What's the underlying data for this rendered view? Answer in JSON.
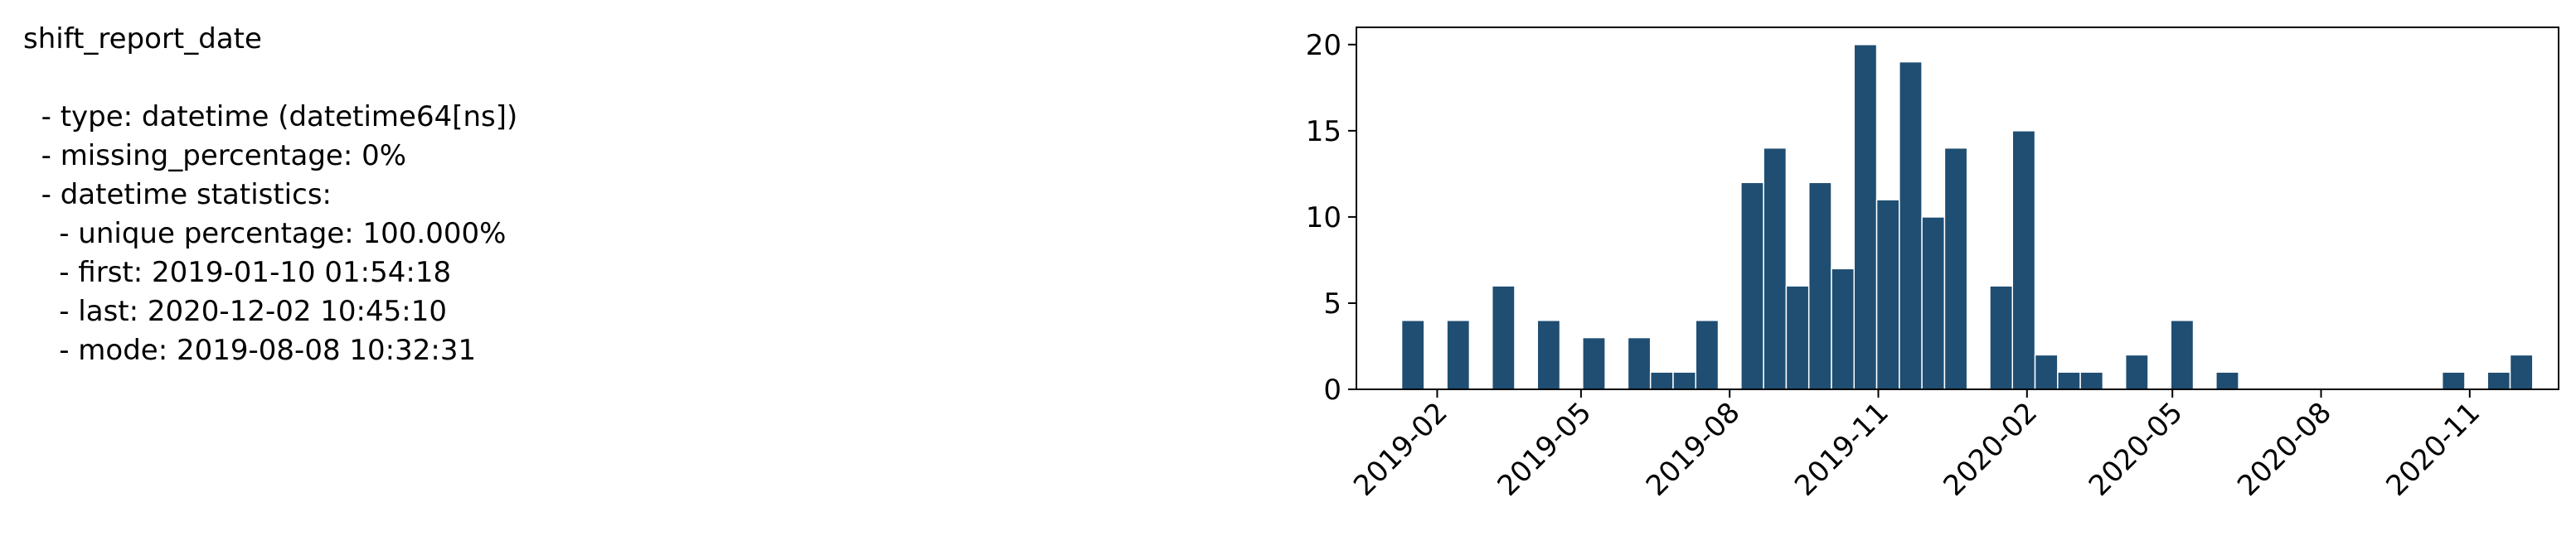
{
  "panel": {
    "column_name": "shift_report_date",
    "lines": [
      "  - type: datetime (datetime64[ns])",
      "  - missing_percentage: 0%",
      "  - datetime statistics:",
      "    - unique percentage: 100.000%",
      "    - first: 2019-01-10 01:54:18",
      "    - last: 2020-12-02 10:45:10",
      "    - mode: 2019-08-08 10:32:31"
    ]
  },
  "colors": {
    "bar": "#1f4e72",
    "bar_edge": "#ffffff",
    "axis": "#000000"
  },
  "chart_data": {
    "type": "bar",
    "grid": false,
    "legend": "none",
    "x_type": "date",
    "xlim": [
      "2018-12-13",
      "2020-12-26"
    ],
    "ylim": [
      0,
      21
    ],
    "yticks": [
      0,
      5,
      10,
      15,
      20
    ],
    "xticks": [
      {
        "date": "2019-02-01",
        "label": "2019-02"
      },
      {
        "date": "2019-05-01",
        "label": "2019-05"
      },
      {
        "date": "2019-08-01",
        "label": "2019-08"
      },
      {
        "date": "2019-11-01",
        "label": "2019-11"
      },
      {
        "date": "2020-02-01",
        "label": "2020-02"
      },
      {
        "date": "2020-05-01",
        "label": "2020-05"
      },
      {
        "date": "2020-08-01",
        "label": "2020-08"
      },
      {
        "date": "2020-11-01",
        "label": "2020-11"
      }
    ],
    "bin_starts": [
      "2019-01-10",
      "2019-01-24",
      "2019-02-07",
      "2019-02-21",
      "2019-03-07",
      "2019-03-21",
      "2019-04-04",
      "2019-04-18",
      "2019-05-02",
      "2019-05-16",
      "2019-05-30",
      "2019-06-13",
      "2019-06-27",
      "2019-07-11",
      "2019-07-25",
      "2019-08-08",
      "2019-08-22",
      "2019-09-05",
      "2019-09-19",
      "2019-10-03",
      "2019-10-17",
      "2019-10-31",
      "2019-11-14",
      "2019-11-28",
      "2019-12-12",
      "2019-12-26",
      "2020-01-09",
      "2020-01-23",
      "2020-02-06",
      "2020-02-20",
      "2020-03-05",
      "2020-03-19",
      "2020-04-02",
      "2020-04-16",
      "2020-04-30",
      "2020-05-14",
      "2020-05-28",
      "2020-06-11",
      "2020-06-25",
      "2020-07-09",
      "2020-07-23",
      "2020-08-06",
      "2020-08-20",
      "2020-09-03",
      "2020-09-17",
      "2020-10-01",
      "2020-10-15",
      "2020-10-29",
      "2020-11-12",
      "2020-11-26"
    ],
    "bin_end": "2020-12-10",
    "values": [
      4,
      0,
      4,
      0,
      6,
      0,
      4,
      0,
      3,
      0,
      3,
      1,
      1,
      4,
      0,
      12,
      14,
      6,
      12,
      7,
      20,
      11,
      19,
      10,
      14,
      0,
      6,
      15,
      2,
      1,
      1,
      0,
      2,
      0,
      4,
      0,
      1,
      0,
      0,
      0,
      0,
      0,
      0,
      0,
      0,
      0,
      1,
      0,
      1,
      2
    ]
  }
}
